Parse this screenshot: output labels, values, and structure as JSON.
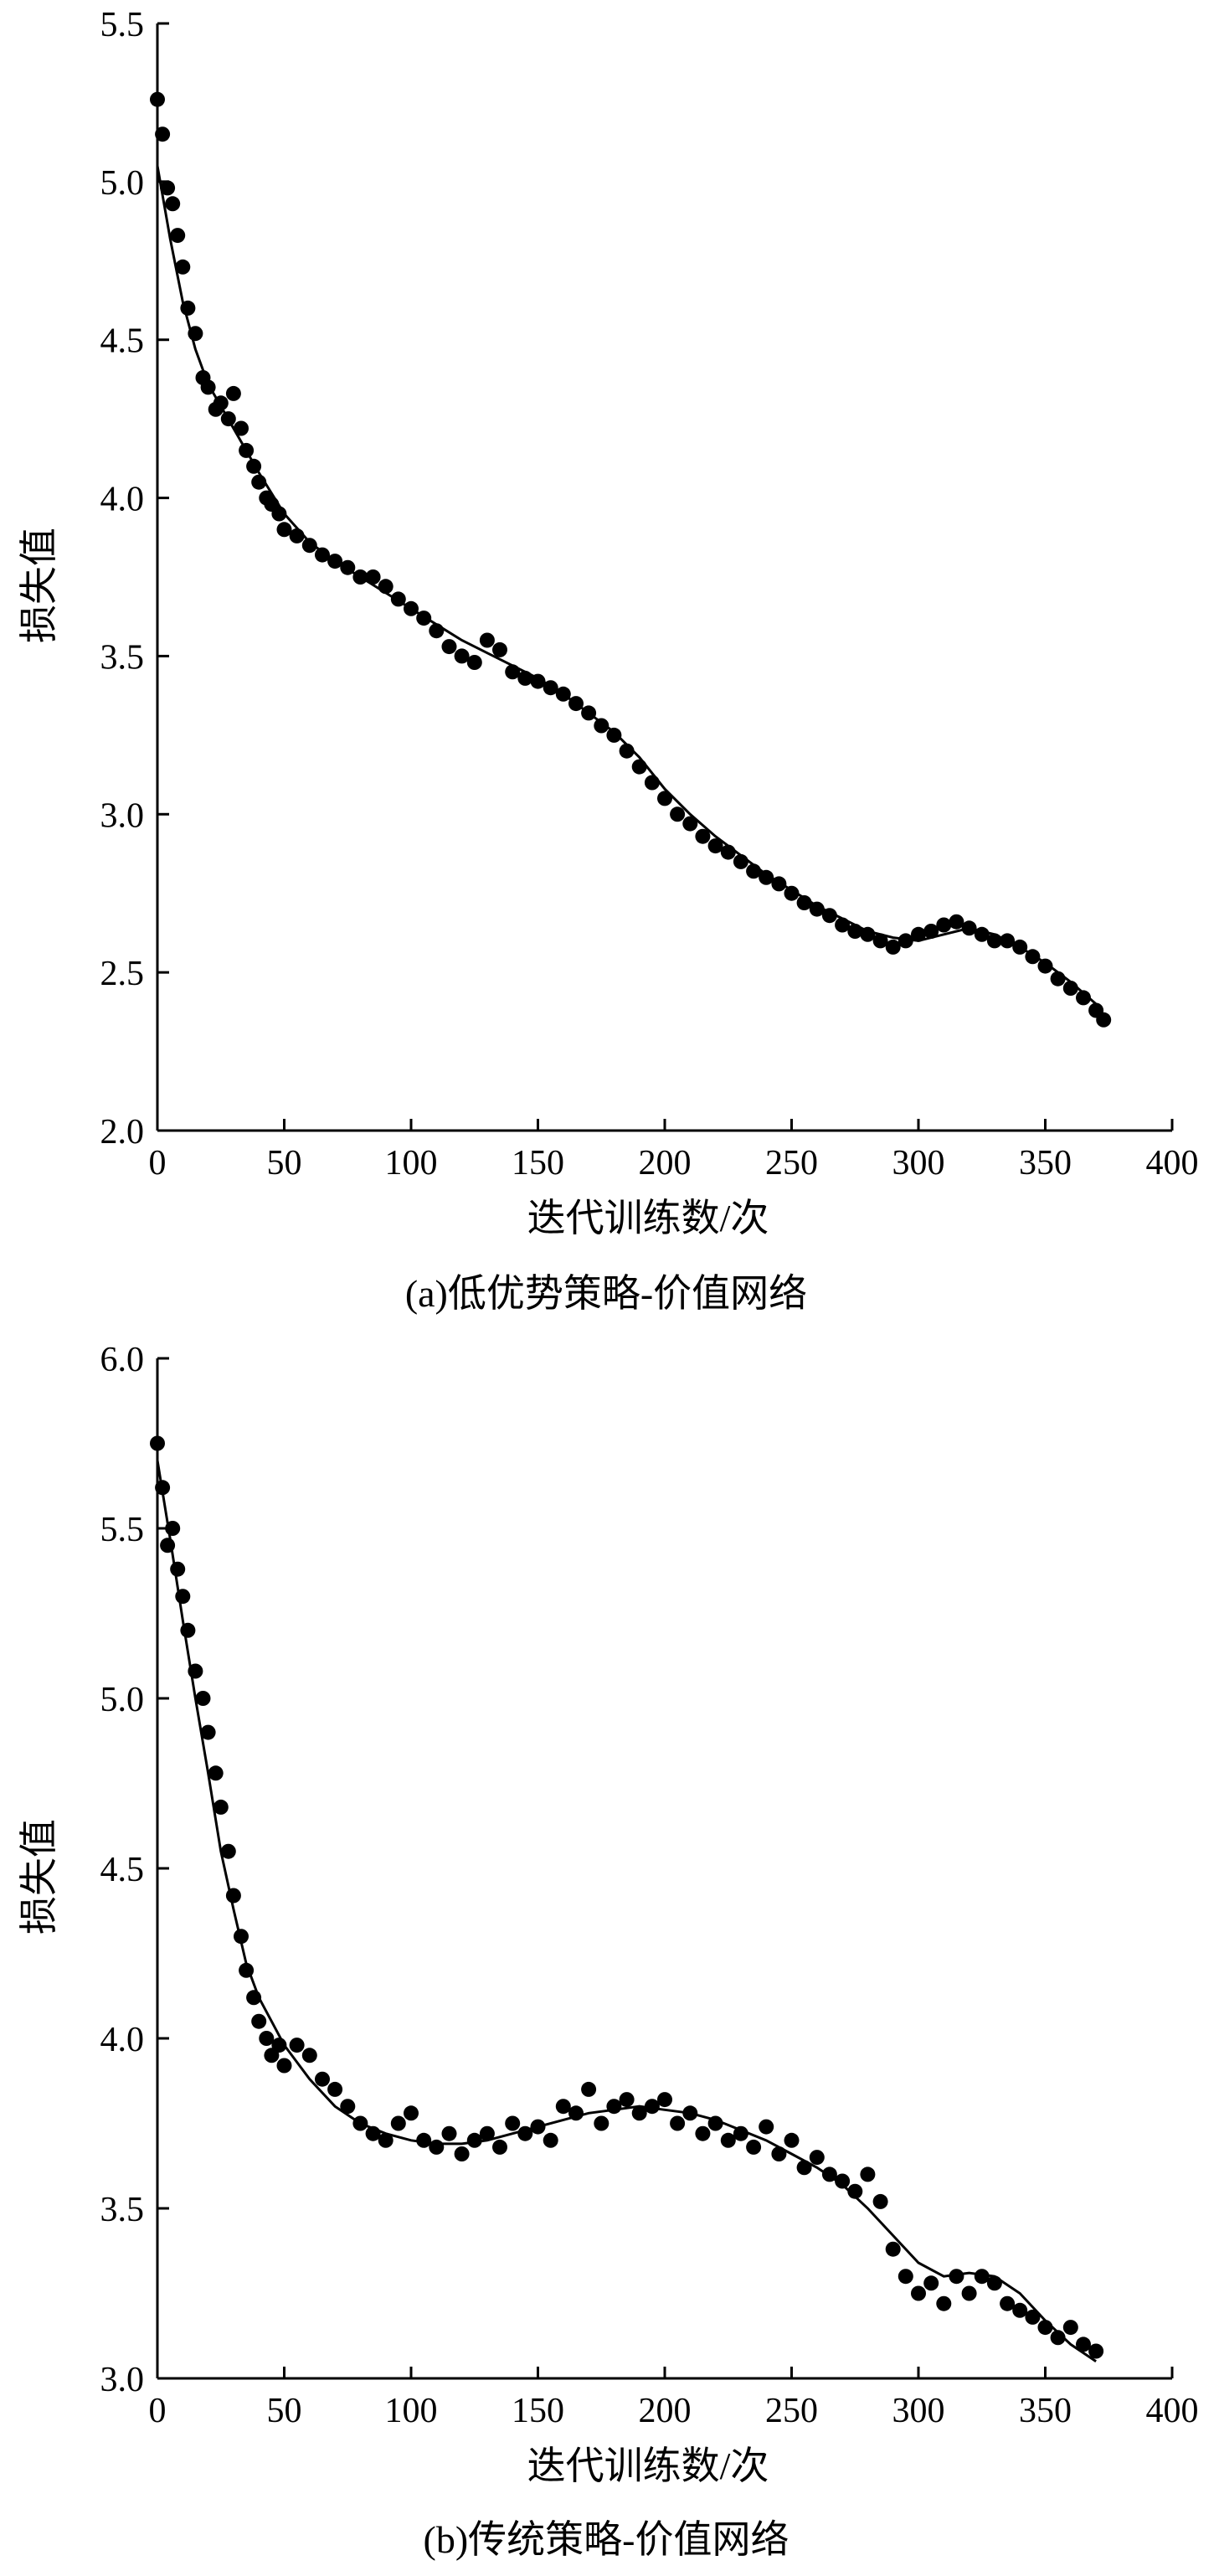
{
  "chart_data": [
    {
      "type": "scatter",
      "title": "",
      "caption": "(a)低优势策略-价值网络",
      "xlabel": "迭代训练数/次",
      "ylabel": "损失值",
      "xlim": [
        0,
        400
      ],
      "ylim": [
        2.0,
        5.5
      ],
      "xticks": [
        0,
        50,
        100,
        150,
        200,
        250,
        300,
        350,
        400
      ],
      "yticks": [
        2.0,
        2.5,
        3.0,
        3.5,
        4.0,
        4.5,
        5.0,
        5.5
      ],
      "xtick_labels": [
        "0",
        "50",
        "100",
        "150",
        "200",
        "250",
        "300",
        "350",
        "400"
      ],
      "ytick_labels": [
        "2.0",
        "2.5",
        "3.0",
        "3.5",
        "4.0",
        "4.5",
        "5.0",
        "5.5"
      ],
      "grid": false,
      "series": [
        {
          "kind": "points",
          "x": [
            0,
            2,
            4,
            6,
            8,
            10,
            12,
            15,
            18,
            20,
            23,
            25,
            28,
            30,
            33,
            35,
            38,
            40,
            43,
            45,
            48,
            50,
            55,
            60,
            65,
            70,
            75,
            80,
            85,
            90,
            95,
            100,
            105,
            110,
            115,
            120,
            125,
            130,
            135,
            140,
            145,
            150,
            155,
            160,
            165,
            170,
            175,
            180,
            185,
            190,
            195,
            200,
            205,
            210,
            215,
            220,
            225,
            230,
            235,
            240,
            245,
            250,
            255,
            260,
            265,
            270,
            275,
            280,
            285,
            290,
            295,
            300,
            305,
            310,
            315,
            320,
            325,
            330,
            335,
            340,
            345,
            350,
            355,
            360,
            365,
            370,
            373
          ],
          "y": [
            5.26,
            5.15,
            4.98,
            4.93,
            4.83,
            4.73,
            4.6,
            4.52,
            4.38,
            4.35,
            4.28,
            4.3,
            4.25,
            4.33,
            4.22,
            4.15,
            4.1,
            4.05,
            4.0,
            3.98,
            3.95,
            3.9,
            3.88,
            3.85,
            3.82,
            3.8,
            3.78,
            3.75,
            3.75,
            3.72,
            3.68,
            3.65,
            3.62,
            3.58,
            3.53,
            3.5,
            3.48,
            3.55,
            3.52,
            3.45,
            3.43,
            3.42,
            3.4,
            3.38,
            3.35,
            3.32,
            3.28,
            3.25,
            3.2,
            3.15,
            3.1,
            3.05,
            3.0,
            2.97,
            2.93,
            2.9,
            2.88,
            2.85,
            2.82,
            2.8,
            2.78,
            2.75,
            2.72,
            2.7,
            2.68,
            2.65,
            2.63,
            2.62,
            2.6,
            2.58,
            2.6,
            2.62,
            2.63,
            2.65,
            2.66,
            2.64,
            2.62,
            2.6,
            2.6,
            2.58,
            2.55,
            2.52,
            2.48,
            2.45,
            2.42,
            2.38,
            2.35
          ]
        },
        {
          "kind": "trend",
          "x": [
            0,
            5,
            10,
            15,
            20,
            25,
            30,
            40,
            50,
            60,
            70,
            80,
            90,
            100,
            110,
            120,
            130,
            140,
            150,
            160,
            170,
            180,
            190,
            200,
            210,
            220,
            230,
            240,
            250,
            260,
            270,
            280,
            290,
            300,
            310,
            320,
            330,
            340,
            350,
            360,
            370,
            375
          ],
          "y": [
            5.05,
            4.82,
            4.62,
            4.47,
            4.36,
            4.29,
            4.22,
            4.08,
            3.95,
            3.86,
            3.8,
            3.75,
            3.7,
            3.65,
            3.6,
            3.55,
            3.51,
            3.47,
            3.43,
            3.38,
            3.32,
            3.26,
            3.18,
            3.08,
            3.0,
            2.93,
            2.87,
            2.81,
            2.76,
            2.71,
            2.67,
            2.63,
            2.61,
            2.6,
            2.62,
            2.64,
            2.62,
            2.58,
            2.53,
            2.47,
            2.4,
            2.34
          ]
        }
      ]
    },
    {
      "type": "scatter",
      "title": "",
      "caption": "(b)传统策略-价值网络",
      "xlabel": "迭代训练数/次",
      "ylabel": "损失值",
      "xlim": [
        0,
        400
      ],
      "ylim": [
        3.0,
        6.0
      ],
      "xticks": [
        0,
        50,
        100,
        150,
        200,
        250,
        300,
        350,
        400
      ],
      "yticks": [
        3.0,
        3.5,
        4.0,
        4.5,
        5.0,
        5.5,
        6.0
      ],
      "xtick_labels": [
        "0",
        "50",
        "100",
        "150",
        "200",
        "250",
        "300",
        "350",
        "400"
      ],
      "ytick_labels": [
        "3.0",
        "3.5",
        "4.0",
        "4.5",
        "5.0",
        "5.5",
        "6.0"
      ],
      "grid": false,
      "series": [
        {
          "kind": "points",
          "x": [
            0,
            2,
            4,
            6,
            8,
            10,
            12,
            15,
            18,
            20,
            23,
            25,
            28,
            30,
            33,
            35,
            38,
            40,
            43,
            45,
            48,
            50,
            55,
            60,
            65,
            70,
            75,
            80,
            85,
            90,
            95,
            100,
            105,
            110,
            115,
            120,
            125,
            130,
            135,
            140,
            145,
            150,
            155,
            160,
            165,
            170,
            175,
            180,
            185,
            190,
            195,
            200,
            205,
            210,
            215,
            220,
            225,
            230,
            235,
            240,
            245,
            250,
            255,
            260,
            265,
            270,
            275,
            280,
            285,
            290,
            295,
            300,
            305,
            310,
            315,
            320,
            325,
            330,
            335,
            340,
            345,
            350,
            355,
            360,
            365,
            370
          ],
          "y": [
            5.75,
            5.62,
            5.45,
            5.5,
            5.38,
            5.3,
            5.2,
            5.08,
            5.0,
            4.9,
            4.78,
            4.68,
            4.55,
            4.42,
            4.3,
            4.2,
            4.12,
            4.05,
            4.0,
            3.95,
            3.98,
            3.92,
            3.98,
            3.95,
            3.88,
            3.85,
            3.8,
            3.75,
            3.72,
            3.7,
            3.75,
            3.78,
            3.7,
            3.68,
            3.72,
            3.66,
            3.7,
            3.72,
            3.68,
            3.75,
            3.72,
            3.74,
            3.7,
            3.8,
            3.78,
            3.85,
            3.75,
            3.8,
            3.82,
            3.78,
            3.8,
            3.82,
            3.75,
            3.78,
            3.72,
            3.75,
            3.7,
            3.72,
            3.68,
            3.74,
            3.66,
            3.7,
            3.62,
            3.65,
            3.6,
            3.58,
            3.55,
            3.6,
            3.52,
            3.38,
            3.3,
            3.25,
            3.28,
            3.22,
            3.3,
            3.25,
            3.3,
            3.28,
            3.22,
            3.2,
            3.18,
            3.15,
            3.12,
            3.15,
            3.1,
            3.08
          ]
        },
        {
          "kind": "trend",
          "x": [
            0,
            5,
            10,
            15,
            20,
            25,
            30,
            35,
            40,
            45,
            50,
            60,
            70,
            80,
            90,
            100,
            110,
            120,
            130,
            140,
            150,
            160,
            170,
            180,
            190,
            200,
            210,
            220,
            230,
            240,
            250,
            260,
            270,
            280,
            290,
            300,
            310,
            320,
            330,
            340,
            350,
            360,
            370
          ],
          "y": [
            5.7,
            5.47,
            5.23,
            5.0,
            4.78,
            4.55,
            4.38,
            4.22,
            4.12,
            4.05,
            3.98,
            3.88,
            3.8,
            3.75,
            3.72,
            3.7,
            3.69,
            3.69,
            3.7,
            3.72,
            3.74,
            3.76,
            3.78,
            3.79,
            3.8,
            3.79,
            3.78,
            3.76,
            3.73,
            3.7,
            3.66,
            3.62,
            3.57,
            3.5,
            3.42,
            3.34,
            3.3,
            3.31,
            3.3,
            3.25,
            3.17,
            3.1,
            3.05
          ]
        }
      ]
    }
  ]
}
